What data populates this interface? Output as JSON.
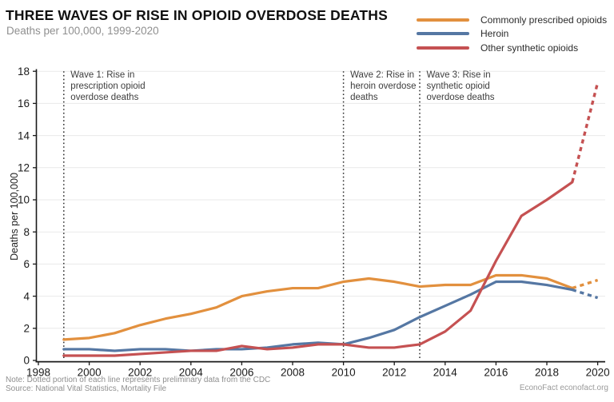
{
  "header": {
    "title": "THREE WAVES OF RISE IN OPIOID OVERDOSE DEATHS",
    "subtitle": "Deaths per 100,000, 1999-2020"
  },
  "footer": {
    "note": "Note: Dotted portion of each line represents preliminary data from the CDC",
    "source": "Source: National Vital Statistics, Mortality File",
    "attribution": "EconoFact econofact.org"
  },
  "colors": {
    "prescribed": "#E2903E",
    "heroin": "#5577A3",
    "synthetic": "#C55152",
    "grid": "#E9E9E9",
    "axis": "#1a1a1a",
    "annotation_line": "#2b2b2b",
    "annotation_text": "#3d3d3d"
  },
  "chart_data": {
    "type": "line",
    "title": "THREE WAVES OF RISE IN OPIOID OVERDOSE DEATHS",
    "subtitle": "Deaths per 100,000, 1999-2020",
    "xlabel": "",
    "ylabel": "Deaths per 100,000",
    "xlim": [
      1998,
      2020.6
    ],
    "ylim": [
      0,
      18
    ],
    "x_ticks": [
      1998,
      2000,
      2002,
      2004,
      2006,
      2008,
      2010,
      2012,
      2014,
      2016,
      2018,
      2020
    ],
    "y_ticks": [
      0,
      2,
      4,
      6,
      8,
      10,
      12,
      14,
      16,
      18
    ],
    "grid": "horizontal",
    "legend_position": "top-right",
    "years": [
      1999,
      2000,
      2001,
      2002,
      2003,
      2004,
      2005,
      2006,
      2007,
      2008,
      2009,
      2010,
      2011,
      2012,
      2013,
      2014,
      2015,
      2016,
      2017,
      2018,
      2019,
      2020
    ],
    "preliminary_start_year": 2019,
    "preliminary_note": "Dotted portion of each line represents preliminary data",
    "series": [
      {
        "name": "Commonly prescribed opioids",
        "color_key": "prescribed",
        "values": [
          1.3,
          1.4,
          1.7,
          2.2,
          2.6,
          2.9,
          3.3,
          4.0,
          4.3,
          4.5,
          4.5,
          4.9,
          5.1,
          4.9,
          4.6,
          4.7,
          4.7,
          5.3,
          5.3,
          5.1,
          4.5,
          5.0
        ]
      },
      {
        "name": "Heroin",
        "color_key": "heroin",
        "values": [
          0.7,
          0.7,
          0.6,
          0.7,
          0.7,
          0.6,
          0.7,
          0.7,
          0.8,
          1.0,
          1.1,
          1.0,
          1.4,
          1.9,
          2.7,
          3.4,
          4.1,
          4.9,
          4.9,
          4.7,
          4.4,
          3.9
        ]
      },
      {
        "name": "Other synthetic opioids",
        "color_key": "synthetic",
        "values": [
          0.3,
          0.3,
          0.3,
          0.4,
          0.5,
          0.6,
          0.6,
          0.9,
          0.7,
          0.8,
          1.0,
          1.0,
          0.8,
          0.8,
          1.0,
          1.8,
          3.1,
          6.2,
          9.0,
          10.0,
          11.1,
          17.3
        ]
      }
    ],
    "annotations": [
      {
        "year": 1999,
        "lines": [
          "Wave 1: Rise in",
          "prescription opioid",
          "overdose deaths"
        ]
      },
      {
        "year": 2010,
        "lines": [
          "Wave 2: Rise in",
          "heroin overdose",
          "deaths"
        ]
      },
      {
        "year": 2013,
        "lines": [
          "Wave 3: Rise in",
          "synthetic opioid",
          "overdose deaths"
        ]
      }
    ]
  }
}
